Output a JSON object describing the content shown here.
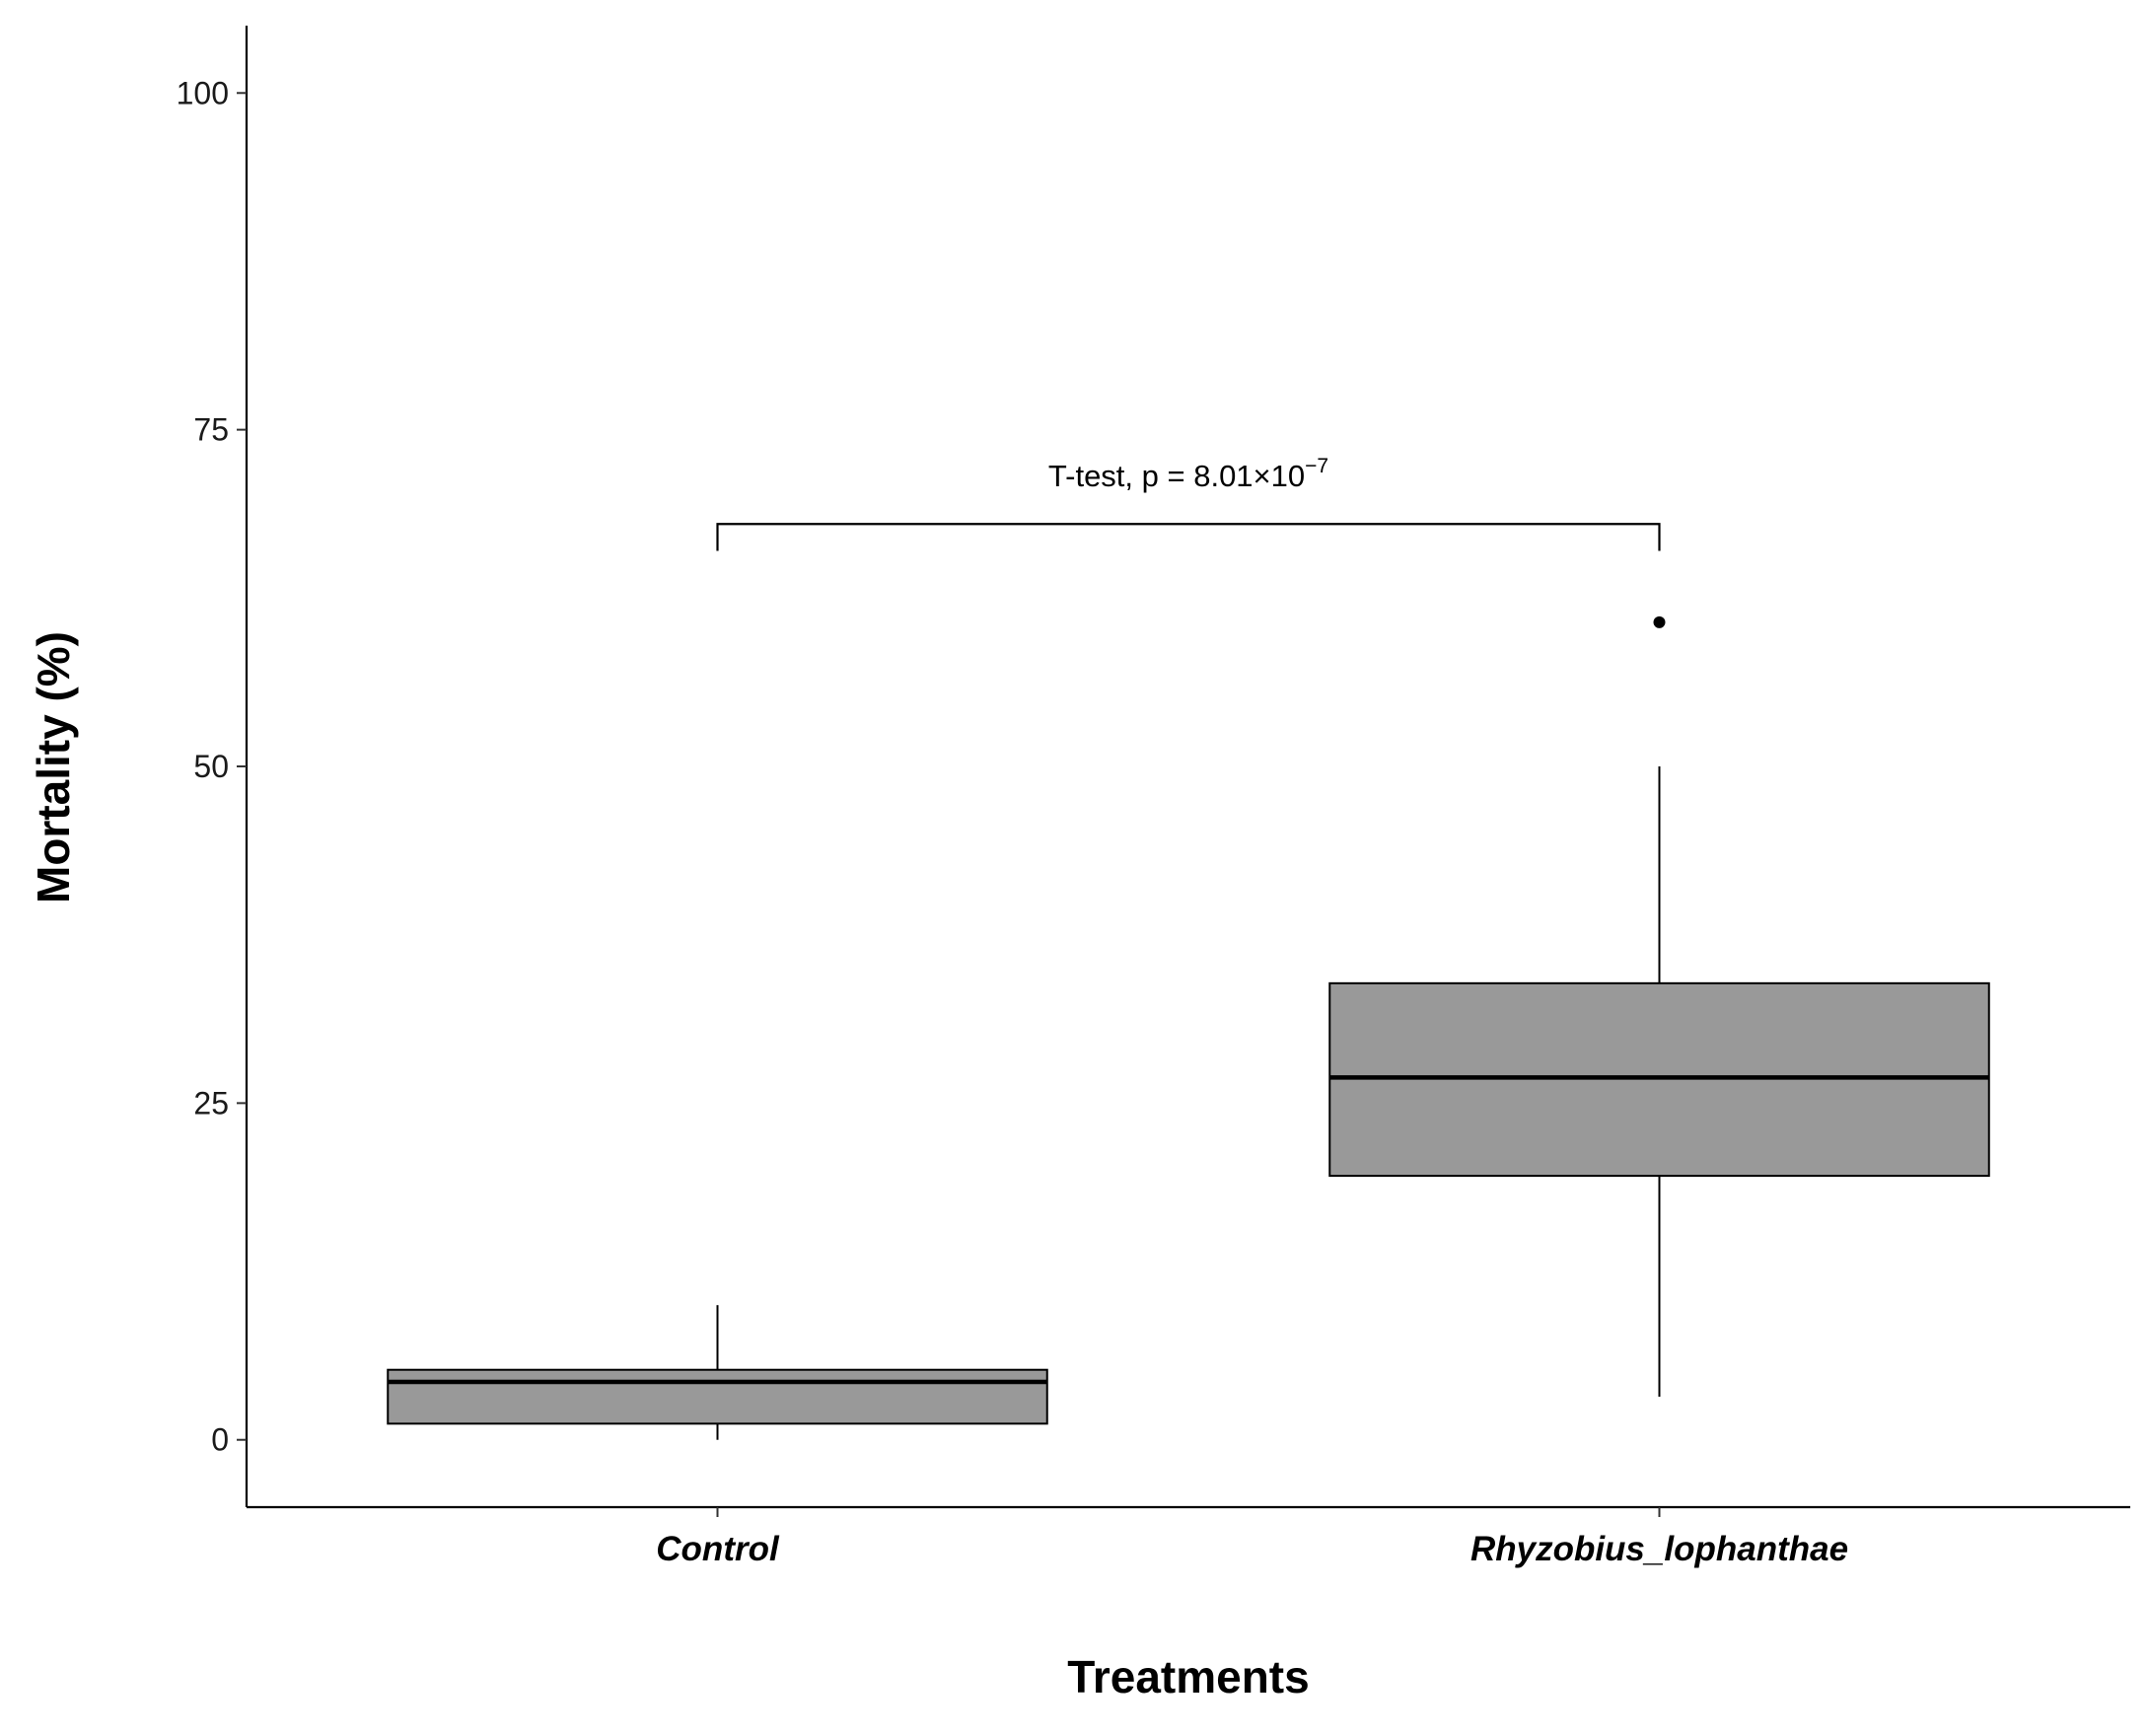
{
  "chart_data": {
    "type": "box",
    "xlabel": "Treatments",
    "ylabel": "Mortality (%)",
    "ylim": [
      -5,
      105
    ],
    "yticks": [
      0,
      25,
      50,
      75,
      100
    ],
    "grid": false,
    "categories": [
      "Control",
      "Rhyzobius_lophanthae"
    ],
    "boxes": [
      {
        "category": "Control",
        "whisker_low": 0,
        "q1": 1.2,
        "median": 4.3,
        "q3": 5.2,
        "whisker_high": 10,
        "outliers": []
      },
      {
        "category": "Rhyzobius_lophanthae",
        "whisker_low": 3.2,
        "q1": 19.6,
        "median": 26.9,
        "q3": 33.9,
        "whisker_high": 50,
        "outliers": [
          60.7
        ]
      }
    ],
    "box_fill": "#999999",
    "annotation": {
      "text": "T-test, p = 8.01×10",
      "superscript": "−7",
      "bracket_y": 68,
      "bracket_drop": 2
    }
  }
}
